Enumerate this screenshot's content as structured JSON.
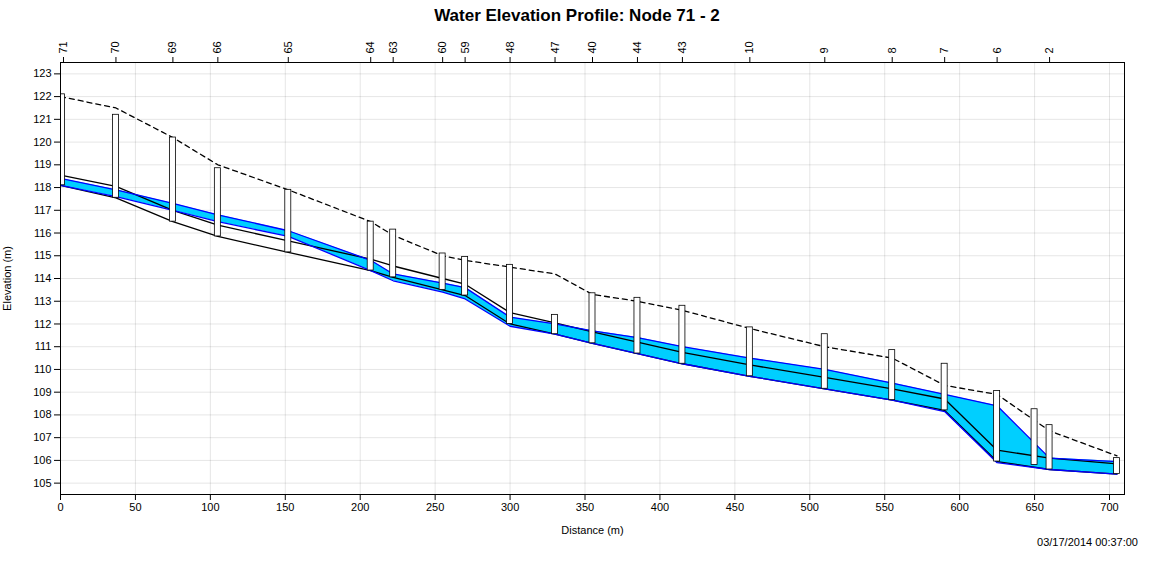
{
  "chart_data": {
    "type": "line",
    "title": "Water Elevation Profile:  Node 71 - 2",
    "xlabel": "Distance (m)",
    "ylabel": "Elevation (m)",
    "annotations": [
      "03/17/2014 00:37:00"
    ],
    "xlim": [
      0,
      710
    ],
    "ylim": [
      104.5,
      123.5
    ],
    "xticks": [
      0,
      50,
      100,
      150,
      200,
      250,
      300,
      350,
      400,
      450,
      500,
      550,
      600,
      650,
      700
    ],
    "yticks": [
      105,
      106,
      107,
      108,
      109,
      110,
      111,
      112,
      113,
      114,
      115,
      116,
      117,
      118,
      119,
      120,
      121,
      122,
      123
    ],
    "x2ticks": [
      {
        "value": 2,
        "label": "71"
      },
      {
        "value": 37,
        "label": "70"
      },
      {
        "value": 75,
        "label": "69"
      },
      {
        "value": 105,
        "label": "66"
      },
      {
        "value": 152,
        "label": "65"
      },
      {
        "value": 207,
        "label": "64"
      },
      {
        "value": 222,
        "label": "63"
      },
      {
        "value": 255,
        "label": "60"
      },
      {
        "value": 270,
        "label": "59"
      },
      {
        "value": 300,
        "label": "48"
      },
      {
        "value": 330,
        "label": "47"
      },
      {
        "value": 355,
        "label": "40"
      },
      {
        "value": 385,
        "label": "44"
      },
      {
        "value": 415,
        "label": "43"
      },
      {
        "value": 460,
        "label": "10"
      },
      {
        "value": 510,
        "label": "9"
      },
      {
        "value": 555,
        "label": "8"
      },
      {
        "value": 590,
        "label": "7"
      },
      {
        "value": 625,
        "label": "6"
      },
      {
        "value": 660,
        "label": "2"
      }
    ],
    "grid": true,
    "x": [
      0,
      37,
      75,
      105,
      152,
      207,
      222,
      255,
      270,
      300,
      330,
      355,
      385,
      415,
      460,
      510,
      555,
      590,
      625,
      660,
      705
    ],
    "series": [
      {
        "type": "line",
        "line_style": "dashed",
        "color": "#000000",
        "values": [
          122.0,
          121.5,
          120.2,
          119.0,
          117.9,
          116.5,
          115.9,
          115.0,
          114.8,
          114.5,
          114.2,
          113.3,
          113.0,
          112.6,
          111.8,
          111.0,
          110.5,
          109.3,
          108.9,
          107.3,
          106.2
        ]
      },
      {
        "type": "area",
        "color": "#00cfff",
        "lower": [
          118.1,
          117.6,
          117.0,
          116.5,
          115.85,
          114.35,
          113.9,
          113.4,
          113.1,
          111.9,
          111.55,
          111.15,
          110.7,
          110.25,
          109.7,
          109.15,
          108.65,
          108.15,
          105.9,
          105.6,
          105.4
        ],
        "upper": [
          118.4,
          117.9,
          117.3,
          116.8,
          116.1,
          114.8,
          114.2,
          113.8,
          113.6,
          112.3,
          112.0,
          111.7,
          111.4,
          111.0,
          110.5,
          110.0,
          109.4,
          108.9,
          108.4,
          106.1,
          105.95
        ]
      },
      {
        "type": "line",
        "line_style": "solid",
        "color": "#000000",
        "values": [
          118.55,
          118.05,
          117.0,
          116.35,
          115.65,
          114.85,
          114.55,
          114.0,
          113.75,
          112.5,
          112.05,
          111.65,
          111.2,
          110.75,
          110.2,
          109.65,
          109.15,
          108.7,
          106.45,
          106.1,
          105.85
        ]
      },
      {
        "type": "line",
        "line_style": "solid",
        "color": "#000000",
        "values": [
          118.1,
          117.55,
          116.5,
          115.85,
          115.15,
          114.35,
          114.05,
          113.5,
          113.25,
          112.0,
          111.55,
          111.15,
          110.7,
          110.25,
          109.7,
          109.15,
          108.65,
          108.2,
          105.95,
          105.6,
          105.4
        ]
      },
      {
        "type": "line",
        "line_style": "solid",
        "color": "#0000ff",
        "values": [
          118.4,
          117.9,
          117.3,
          116.8,
          116.1,
          114.8,
          114.2,
          113.8,
          113.6,
          112.3,
          112.0,
          111.7,
          111.4,
          111.0,
          110.5,
          110.0,
          109.4,
          108.9,
          108.4,
          106.1,
          105.95
        ]
      },
      {
        "type": "line",
        "line_style": "solid",
        "color": "#0000ff",
        "values": [
          118.1,
          117.6,
          117.0,
          116.5,
          115.85,
          114.35,
          113.9,
          113.4,
          113.1,
          111.9,
          111.55,
          111.15,
          110.7,
          110.25,
          109.7,
          109.15,
          108.65,
          108.15,
          105.9,
          105.6,
          105.4
        ]
      }
    ],
    "manholes": [
      {
        "x": 1,
        "bottom": 118.1,
        "top": 122.1,
        "width": 4
      },
      {
        "x": 37,
        "bottom": 117.55,
        "top": 121.2,
        "width": 4
      },
      {
        "x": 75,
        "bottom": 116.5,
        "top": 120.2,
        "width": 4
      },
      {
        "x": 105,
        "bottom": 115.85,
        "top": 118.85,
        "width": 4
      },
      {
        "x": 152,
        "bottom": 115.15,
        "top": 117.9,
        "width": 4
      },
      {
        "x": 207,
        "bottom": 114.35,
        "top": 116.5,
        "width": 4
      },
      {
        "x": 222,
        "bottom": 114.05,
        "top": 116.15,
        "width": 4
      },
      {
        "x": 255,
        "bottom": 113.5,
        "top": 115.1,
        "width": 4
      },
      {
        "x": 270,
        "bottom": 113.25,
        "top": 114.95,
        "width": 4
      },
      {
        "x": 300,
        "bottom": 112.0,
        "top": 114.6,
        "width": 4
      },
      {
        "x": 330,
        "bottom": 111.55,
        "top": 112.4,
        "width": 4
      },
      {
        "x": 355,
        "bottom": 111.15,
        "top": 113.35,
        "width": 4
      },
      {
        "x": 385,
        "bottom": 110.7,
        "top": 113.15,
        "width": 4
      },
      {
        "x": 415,
        "bottom": 110.25,
        "top": 112.8,
        "width": 4
      },
      {
        "x": 460,
        "bottom": 109.7,
        "top": 111.85,
        "width": 4
      },
      {
        "x": 510,
        "bottom": 109.15,
        "top": 111.55,
        "width": 4
      },
      {
        "x": 555,
        "bottom": 108.65,
        "top": 110.85,
        "width": 4
      },
      {
        "x": 590,
        "bottom": 108.2,
        "top": 110.25,
        "width": 4
      },
      {
        "x": 625,
        "bottom": 105.95,
        "top": 109.05,
        "width": 4
      },
      {
        "x": 650,
        "bottom": 105.8,
        "top": 108.25,
        "width": 4
      },
      {
        "x": 660,
        "bottom": 105.6,
        "top": 107.55,
        "width": 4
      },
      {
        "x": 705,
        "bottom": 105.4,
        "top": 106.1,
        "width": 4
      }
    ]
  }
}
